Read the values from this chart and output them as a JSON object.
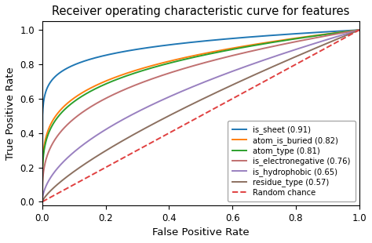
{
  "title": "Receiver operating characteristic curve for features",
  "xlabel": "False Positive Rate",
  "ylabel": "True Positive Rate",
  "curves": [
    {
      "label": "is_sheet (0.91)",
      "auc": 0.91,
      "color": "#1f77b4",
      "power": 0.099
    },
    {
      "label": "atom_is_buried (0.82)",
      "auc": 0.82,
      "color": "#ff7f0e",
      "power": 0.22
    },
    {
      "label": "atom_type (0.81)",
      "auc": 0.81,
      "color": "#2ca02c",
      "power": 0.235
    },
    {
      "label": "is_electronegative (0.76)",
      "auc": 0.76,
      "color": "#c07070",
      "power": 0.316
    },
    {
      "label": "is_hydrophobic (0.65)",
      "auc": 0.65,
      "color": "#9980c0",
      "power": 0.538
    },
    {
      "label": "residue_type (0.57)",
      "auc": 0.57,
      "color": "#8c7060",
      "power": 0.754
    }
  ],
  "random_label": "Random chance",
  "random_color": "#e04040",
  "xlim": [
    0.0,
    1.0
  ],
  "ylim": [
    -0.02,
    1.05
  ],
  "title_fontsize": 10.5
}
